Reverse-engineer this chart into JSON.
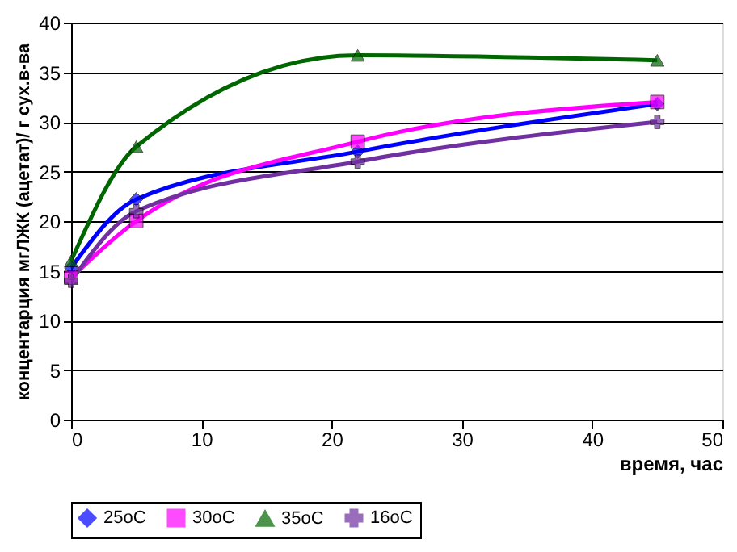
{
  "chart_data": {
    "type": "line",
    "xlabel": "время, час",
    "ylabel": "концентарция  мгЛЖК (ацетат)/ г сух.в-ва",
    "x": [
      0,
      5,
      22,
      45
    ],
    "series": [
      {
        "name": "25oC",
        "color": "#0000ff",
        "marker": "diamond",
        "values": [
          15.3,
          22.2,
          27,
          31.8
        ]
      },
      {
        "name": "30oC",
        "color": "#ff00ff",
        "marker": "square",
        "values": [
          14.3,
          20,
          28,
          32
        ]
      },
      {
        "name": "35oC",
        "color": "#006600",
        "marker": "triangle",
        "values": [
          16,
          27.5,
          36.7,
          36.2
        ]
      },
      {
        "name": "16oC",
        "color": "#7030a0",
        "marker": "cross",
        "values": [
          14,
          21,
          26,
          30
        ]
      }
    ],
    "xlim": [
      0,
      50
    ],
    "xticks": [
      0,
      10,
      20,
      30,
      40,
      50
    ],
    "ylim": [
      0,
      40
    ],
    "yticks": [
      0,
      5,
      10,
      15,
      20,
      25,
      30,
      35,
      40
    ],
    "grid": "y",
    "legend": "bottom",
    "line_style": "solid"
  }
}
